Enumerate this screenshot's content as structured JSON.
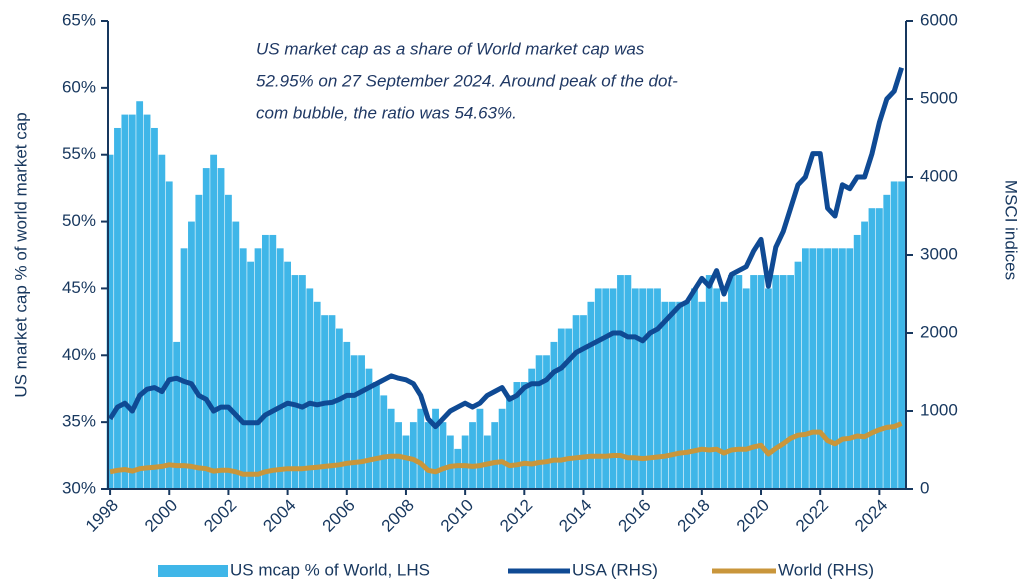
{
  "chart_data": {
    "type": "bar",
    "annotation": [
      "US market cap as a share of World market cap was",
      "52.95% on 27 September 2024. Around peak of the dot-",
      "com bubble, the ratio was 54.63%."
    ],
    "ylabel": "US market cap % of world market cap",
    "y2label": "MSCI indices",
    "x": [
      1998,
      1998.25,
      1998.5,
      1998.75,
      1999,
      1999.25,
      1999.5,
      1999.75,
      2000,
      2000.25,
      2000.5,
      2000.75,
      2001,
      2001.25,
      2001.5,
      2001.75,
      2002,
      2002.25,
      2002.5,
      2002.75,
      2003,
      2003.25,
      2003.5,
      2003.75,
      2004,
      2004.25,
      2004.5,
      2004.75,
      2005,
      2005.25,
      2005.5,
      2005.75,
      2006,
      2006.25,
      2006.5,
      2006.75,
      2007,
      2007.25,
      2007.5,
      2007.75,
      2008,
      2008.25,
      2008.5,
      2008.75,
      2009,
      2009.25,
      2009.5,
      2009.75,
      2010,
      2010.25,
      2010.5,
      2010.75,
      2011,
      2011.25,
      2011.5,
      2011.75,
      2012,
      2012.25,
      2012.5,
      2012.75,
      2013,
      2013.25,
      2013.5,
      2013.75,
      2014,
      2014.25,
      2014.5,
      2014.75,
      2015,
      2015.25,
      2015.5,
      2015.75,
      2016,
      2016.25,
      2016.5,
      2016.75,
      2017,
      2017.25,
      2017.5,
      2017.75,
      2018,
      2018.25,
      2018.5,
      2018.75,
      2019,
      2019.25,
      2019.5,
      2019.75,
      2020,
      2020.25,
      2020.5,
      2020.75,
      2021,
      2021.25,
      2021.5,
      2021.75,
      2022,
      2022.25,
      2022.5,
      2022.75,
      2023,
      2023.25,
      2023.5,
      2023.75,
      2024,
      2024.25,
      2024.5,
      2024.75
    ],
    "series": [
      {
        "name": "US mcap % of World, LHS",
        "type": "bar",
        "color": "#3fb6e8",
        "axis": "y",
        "values": [
          55,
          57,
          58,
          58,
          59,
          58,
          57,
          55,
          53,
          41,
          48,
          50,
          52,
          54,
          55,
          54,
          52,
          50,
          48,
          47,
          48,
          49,
          49,
          48,
          47,
          46,
          46,
          45,
          44,
          43,
          43,
          42,
          41,
          40,
          40,
          39,
          38,
          37,
          36,
          35,
          34,
          35,
          36,
          35,
          36,
          35,
          34,
          33,
          34,
          35,
          36,
          34,
          35,
          36,
          37,
          38,
          38,
          39,
          40,
          40,
          41,
          42,
          42,
          43,
          43,
          44,
          45,
          45,
          45,
          46,
          46,
          45,
          45,
          45,
          45,
          44,
          44,
          44,
          44,
          45,
          44,
          46,
          45,
          44,
          46,
          46,
          45,
          46,
          46,
          45,
          46,
          46,
          46,
          47,
          48,
          48,
          48,
          48,
          48,
          48,
          48,
          49,
          50,
          51,
          51,
          52,
          53,
          53
        ]
      },
      {
        "name": "USA (RHS)",
        "type": "line",
        "color": "#0f4a94",
        "axis": "y2",
        "values": [
          900,
          1050,
          1100,
          1000,
          1200,
          1280,
          1300,
          1250,
          1400,
          1420,
          1380,
          1350,
          1200,
          1150,
          1000,
          1050,
          1050,
          950,
          850,
          850,
          850,
          950,
          1000,
          1050,
          1100,
          1080,
          1050,
          1100,
          1080,
          1100,
          1110,
          1150,
          1200,
          1200,
          1250,
          1300,
          1350,
          1400,
          1450,
          1420,
          1400,
          1350,
          1200,
          900,
          800,
          900,
          1000,
          1050,
          1100,
          1050,
          1100,
          1200,
          1250,
          1300,
          1150,
          1200,
          1300,
          1350,
          1350,
          1400,
          1500,
          1550,
          1650,
          1750,
          1800,
          1850,
          1900,
          1950,
          2000,
          2000,
          1950,
          1950,
          1900,
          2000,
          2050,
          2150,
          2250,
          2350,
          2400,
          2550,
          2700,
          2600,
          2800,
          2500,
          2750,
          2800,
          2850,
          3050,
          3200,
          2600,
          3100,
          3300,
          3600,
          3900,
          4000,
          4300,
          4300,
          3600,
          3500,
          3900,
          3850,
          4000,
          4000,
          4300,
          4700,
          5000,
          5100,
          5400
        ]
      },
      {
        "name": "World (RHS)",
        "type": "line",
        "color": "#c9963b",
        "axis": "y2",
        "values": [
          220,
          240,
          250,
          230,
          260,
          270,
          280,
          290,
          310,
          300,
          300,
          290,
          270,
          260,
          230,
          240,
          240,
          220,
          190,
          190,
          190,
          220,
          240,
          250,
          260,
          260,
          260,
          270,
          280,
          290,
          300,
          310,
          330,
          340,
          350,
          370,
          390,
          410,
          420,
          420,
          400,
          380,
          330,
          240,
          220,
          260,
          290,
          300,
          300,
          290,
          300,
          320,
          340,
          350,
          300,
          310,
          330,
          320,
          340,
          350,
          370,
          370,
          390,
          400,
          410,
          420,
          420,
          420,
          430,
          430,
          400,
          400,
          390,
          400,
          410,
          420,
          440,
          460,
          470,
          490,
          510,
          500,
          510,
          460,
          500,
          510,
          510,
          540,
          560,
          450,
          520,
          580,
          650,
          690,
          700,
          730,
          730,
          620,
          580,
          640,
          650,
          680,
          670,
          720,
          760,
          790,
          800,
          840
        ]
      }
    ],
    "xlim": [
      1997.93,
      2024.9
    ],
    "xticks": [
      1998,
      2000,
      2002,
      2004,
      2006,
      2008,
      2010,
      2012,
      2014,
      2016,
      2018,
      2020,
      2022,
      2024
    ],
    "ylim": [
      30,
      65
    ],
    "yticks": [
      {
        "value": 30,
        "label": "30%"
      },
      {
        "value": 35,
        "label": "35%"
      },
      {
        "value": 40,
        "label": "40%"
      },
      {
        "value": 45,
        "label": "45%"
      },
      {
        "value": 50,
        "label": "50%"
      },
      {
        "value": 55,
        "label": "55%"
      },
      {
        "value": 60,
        "label": "60%"
      },
      {
        "value": 65,
        "label": "65%"
      }
    ],
    "y2lim": [
      0,
      6000
    ],
    "y2ticks": [
      0,
      1000,
      2000,
      3000,
      4000,
      5000,
      6000
    ],
    "legend": "bottom"
  }
}
